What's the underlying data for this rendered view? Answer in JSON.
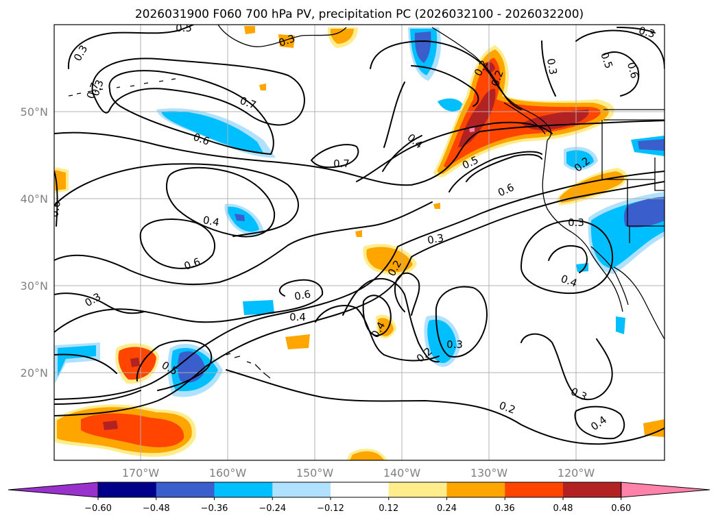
{
  "title": "2026031900 F060 700 hPa PV, precipitation PC (2026032100 - 2026032200)",
  "lat_labels": [
    "50°N",
    "40°N",
    "30°N",
    "20°N"
  ],
  "lon_labels": [
    "170°W",
    "160°W",
    "150°W",
    "140°W",
    "130°W",
    "120°W"
  ],
  "colorbar": {
    "ticks": [
      "−0.60",
      "−0.48",
      "−0.36",
      "−0.24",
      "−0.12",
      "0.12",
      "0.24",
      "0.36",
      "0.48",
      "0.60"
    ],
    "colors": [
      "#9932cc",
      "#00008b",
      "#3a5fcd",
      "#00bfff",
      "#b0e2ff",
      "#ffffff",
      "#ffec8b",
      "#ffa500",
      "#ff4500",
      "#b22222",
      "#ff82ab"
    ]
  },
  "contour_labels": {
    "c1": "0.5",
    "c2": "0.3",
    "c3": "0.7",
    "c4": "0.6",
    "c5": "0.7",
    "c6": "0.4",
    "c7": "0.5",
    "c8": "0.7",
    "c9": "0.6",
    "c10": "0.3",
    "c11": "0.6",
    "c12": "0.4",
    "c13": "0.6",
    "c14": "0.3",
    "c15": "0.6",
    "c16": "0.4",
    "c17": "0.3",
    "c18": "0.2",
    "c19": "0.4",
    "c20": "0.2",
    "c21": "0.3",
    "c22": "0.5",
    "c23": "0.3",
    "c24": "0.2",
    "c25": "0.4",
    "c26": "0.3",
    "c27": "0.2",
    "c28": "0.3",
    "c29": "0.5",
    "c30": "0.6",
    "c31": "0.3",
    "c32": "0.3",
    "c33": "0.2",
    "c34": "0.2",
    "c35": "0.4"
  }
}
